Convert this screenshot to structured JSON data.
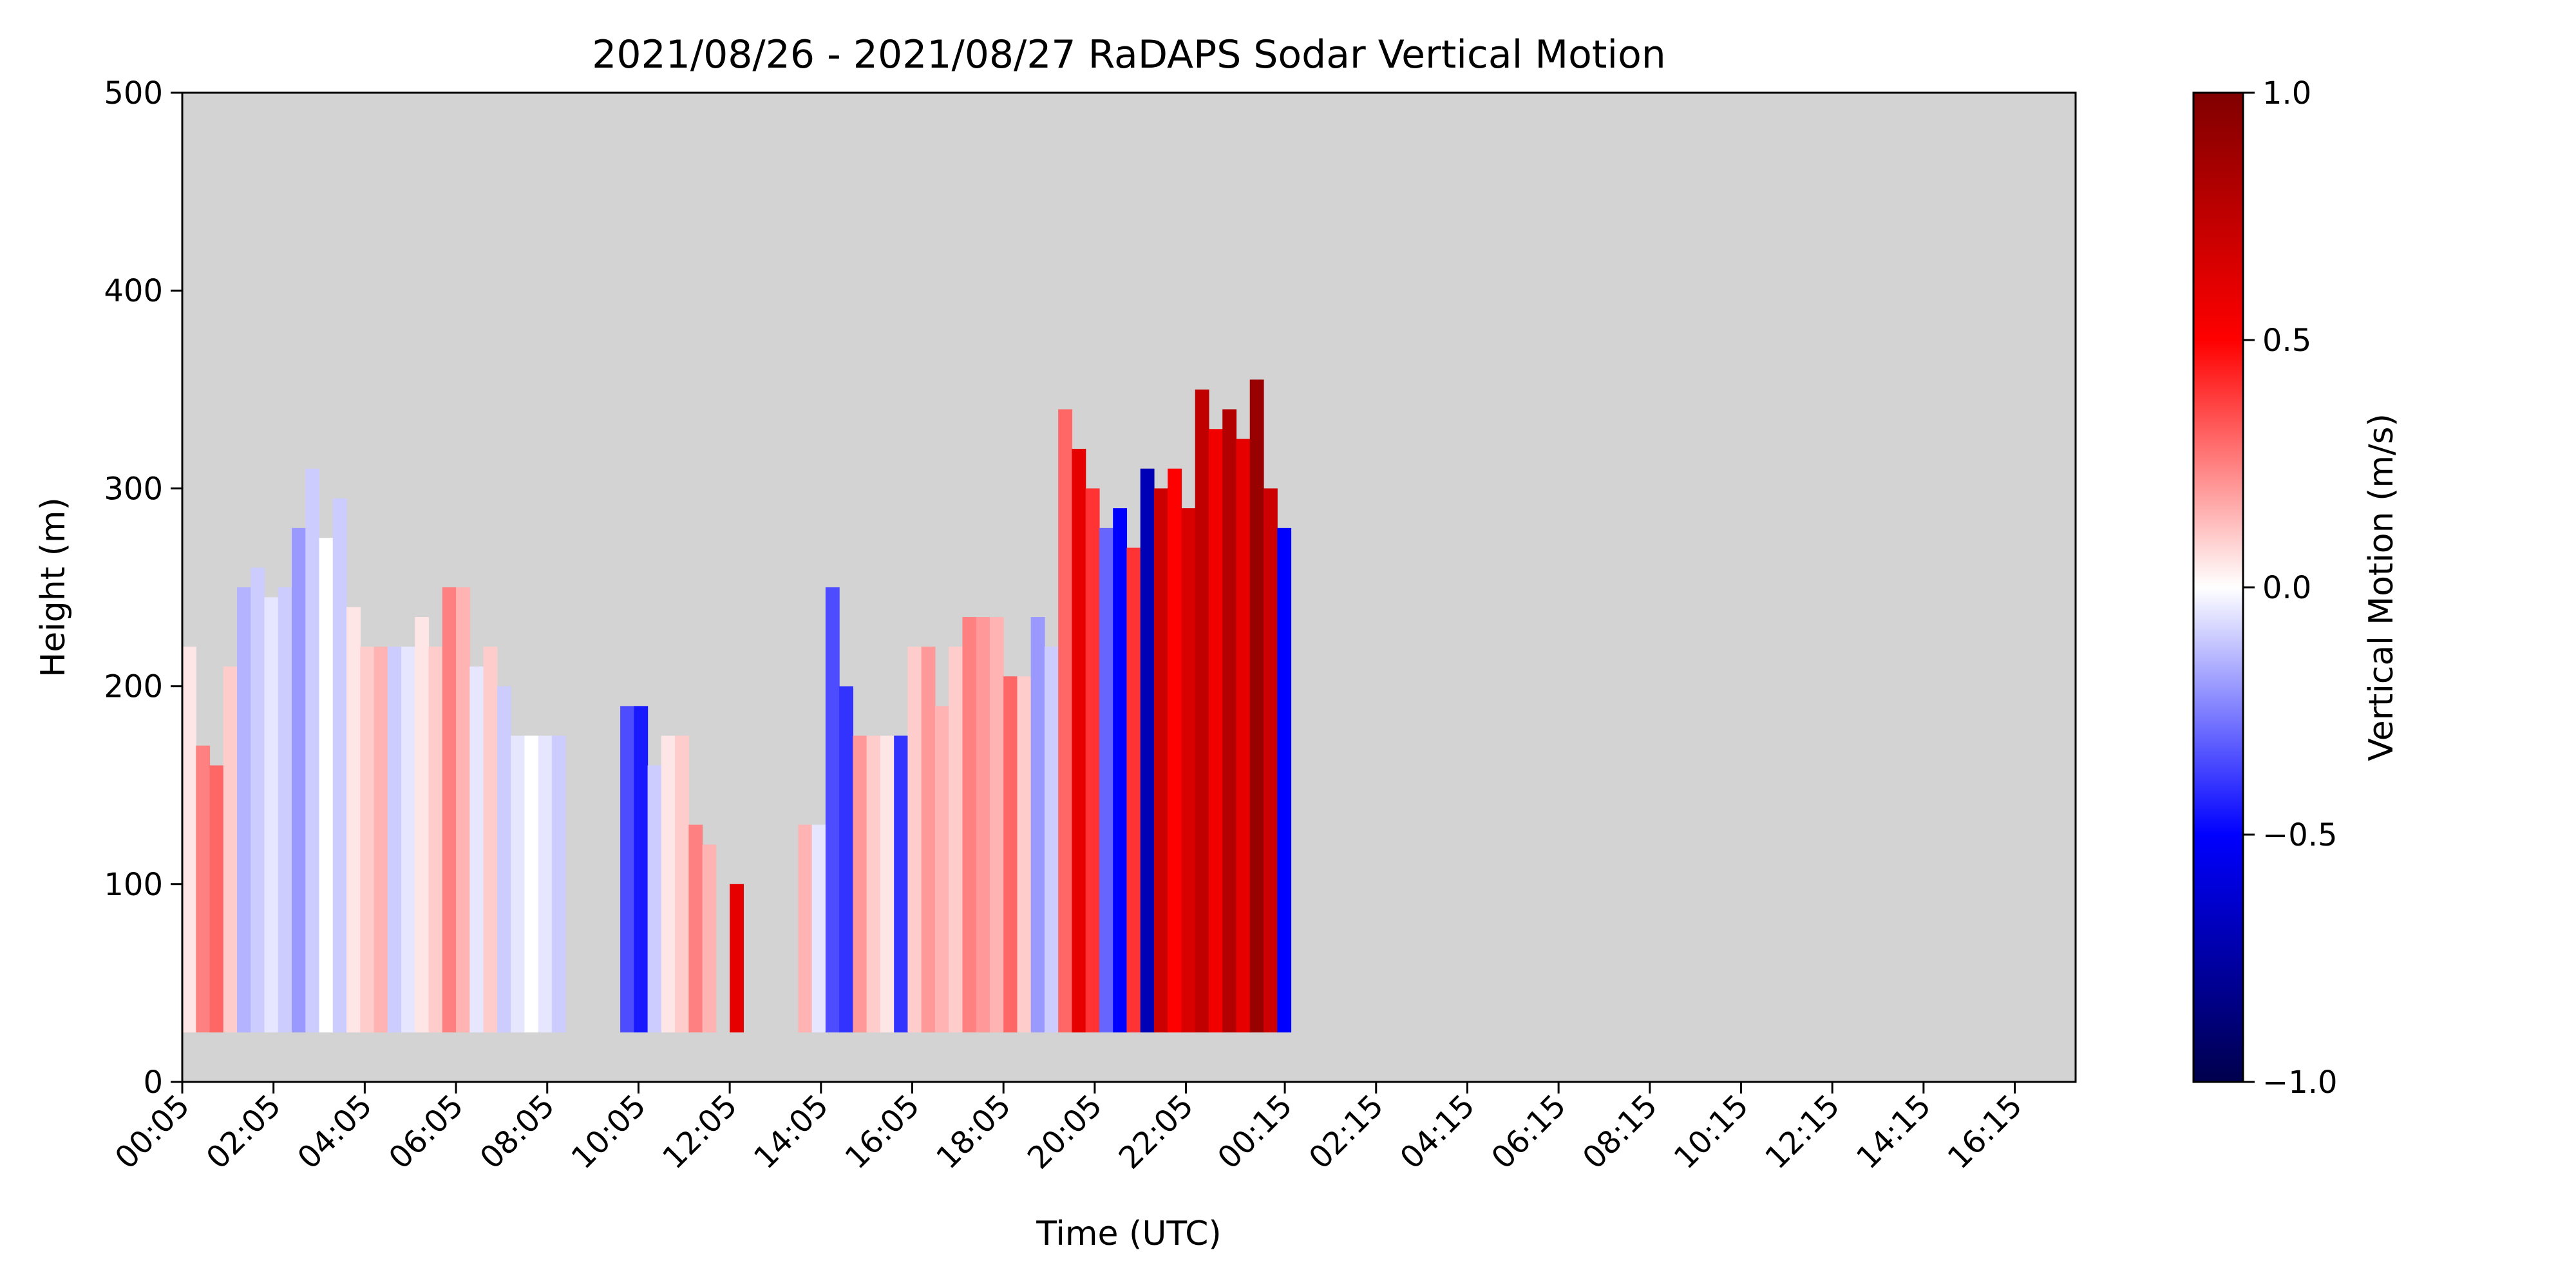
{
  "chart_data": {
    "type": "heatmap",
    "title": "2021/08/26 - 2021/08/27 RaDAPS Sodar Vertical Motion",
    "xlabel": "Time (UTC)",
    "ylabel": "Height (m)",
    "colorbar_label": "Vertical Motion (m/s)",
    "colormap": "seismic",
    "background_color": "#d3d3d3",
    "x_ticks": [
      "00:05",
      "02:05",
      "04:05",
      "06:05",
      "08:05",
      "10:05",
      "12:05",
      "14:05",
      "16:05",
      "18:05",
      "20:05",
      "22:05",
      "00:15",
      "02:15",
      "04:15",
      "06:15",
      "08:15",
      "10:15",
      "12:15",
      "14:15",
      "16:15"
    ],
    "x_tick_hours_from_start": [
      0,
      2,
      4,
      6,
      8,
      10,
      12,
      14,
      16,
      18,
      20,
      22,
      24.167,
      26.167,
      28.167,
      30.167,
      32.167,
      34.167,
      36.167,
      38.167,
      40.167
    ],
    "xlim_hours_from_start": [
      0,
      41.5
    ],
    "ylim": [
      0,
      500
    ],
    "y_ticks": [
      0,
      100,
      200,
      300,
      400,
      500
    ],
    "clim": [
      -1.0,
      1.0
    ],
    "colorbar_ticks": [
      "1.0",
      "0.5",
      "0.0",
      "−0.5",
      "−1.0"
    ],
    "colorbar_tick_values": [
      1.0,
      0.5,
      0.0,
      -0.5,
      -1.0
    ],
    "min_data_height": 25,
    "data_columns": [
      {
        "t": 0.0,
        "top": 220,
        "v": 0.05
      },
      {
        "t": 0.3,
        "top": 170,
        "v": 0.25
      },
      {
        "t": 0.6,
        "top": 160,
        "v": 0.3
      },
      {
        "t": 0.9,
        "top": 210,
        "v": 0.1
      },
      {
        "t": 1.2,
        "top": 250,
        "v": -0.15
      },
      {
        "t": 1.5,
        "top": 260,
        "v": -0.1
      },
      {
        "t": 1.8,
        "top": 245,
        "v": -0.05
      },
      {
        "t": 2.1,
        "top": 250,
        "v": -0.1
      },
      {
        "t": 2.4,
        "top": 280,
        "v": -0.2
      },
      {
        "t": 2.7,
        "top": 310,
        "v": -0.1
      },
      {
        "t": 3.0,
        "top": 275,
        "v": 0.0
      },
      {
        "t": 3.3,
        "top": 295,
        "v": -0.1
      },
      {
        "t": 3.6,
        "top": 240,
        "v": 0.05
      },
      {
        "t": 3.9,
        "top": 220,
        "v": 0.1
      },
      {
        "t": 4.2,
        "top": 220,
        "v": 0.15
      },
      {
        "t": 4.5,
        "top": 220,
        "v": -0.1
      },
      {
        "t": 4.8,
        "top": 220,
        "v": -0.05
      },
      {
        "t": 5.1,
        "top": 235,
        "v": 0.05
      },
      {
        "t": 5.4,
        "top": 220,
        "v": 0.1
      },
      {
        "t": 5.7,
        "top": 250,
        "v": 0.25
      },
      {
        "t": 6.0,
        "top": 250,
        "v": 0.15
      },
      {
        "t": 6.3,
        "top": 210,
        "v": -0.05
      },
      {
        "t": 6.6,
        "top": 220,
        "v": 0.1
      },
      {
        "t": 6.9,
        "top": 200,
        "v": -0.1
      },
      {
        "t": 7.2,
        "top": 175,
        "v": -0.05
      },
      {
        "t": 7.5,
        "top": 175,
        "v": 0.0
      },
      {
        "t": 7.8,
        "top": 175,
        "v": -0.05
      },
      {
        "t": 8.1,
        "top": 175,
        "v": -0.1
      },
      {
        "t": 9.6,
        "top": 190,
        "v": -0.35
      },
      {
        "t": 9.9,
        "top": 190,
        "v": -0.45
      },
      {
        "t": 10.2,
        "top": 160,
        "v": -0.1
      },
      {
        "t": 10.5,
        "top": 175,
        "v": 0.05
      },
      {
        "t": 10.8,
        "top": 175,
        "v": 0.1
      },
      {
        "t": 11.1,
        "top": 130,
        "v": 0.25
      },
      {
        "t": 11.4,
        "top": 120,
        "v": 0.15
      },
      {
        "t": 12.0,
        "top": 100,
        "v": 0.6
      },
      {
        "t": 13.5,
        "top": 130,
        "v": 0.15
      },
      {
        "t": 13.8,
        "top": 130,
        "v": -0.05
      },
      {
        "t": 14.1,
        "top": 250,
        "v": -0.35
      },
      {
        "t": 14.4,
        "top": 200,
        "v": -0.4
      },
      {
        "t": 14.7,
        "top": 175,
        "v": 0.2
      },
      {
        "t": 15.0,
        "top": 175,
        "v": 0.1
      },
      {
        "t": 15.3,
        "top": 175,
        "v": 0.05
      },
      {
        "t": 15.6,
        "top": 175,
        "v": -0.4
      },
      {
        "t": 15.9,
        "top": 220,
        "v": 0.1
      },
      {
        "t": 16.2,
        "top": 220,
        "v": 0.2
      },
      {
        "t": 16.5,
        "top": 190,
        "v": 0.15
      },
      {
        "t": 16.8,
        "top": 220,
        "v": 0.1
      },
      {
        "t": 17.1,
        "top": 235,
        "v": 0.25
      },
      {
        "t": 17.4,
        "top": 235,
        "v": 0.2
      },
      {
        "t": 17.7,
        "top": 235,
        "v": 0.15
      },
      {
        "t": 18.0,
        "top": 205,
        "v": 0.3
      },
      {
        "t": 18.3,
        "top": 205,
        "v": 0.1
      },
      {
        "t": 18.6,
        "top": 235,
        "v": -0.2
      },
      {
        "t": 18.9,
        "top": 220,
        "v": -0.1
      },
      {
        "t": 19.2,
        "top": 340,
        "v": 0.3
      },
      {
        "t": 19.5,
        "top": 320,
        "v": 0.6
      },
      {
        "t": 19.8,
        "top": 300,
        "v": 0.4
      },
      {
        "t": 20.1,
        "top": 280,
        "v": -0.3
      },
      {
        "t": 20.4,
        "top": 290,
        "v": -0.5
      },
      {
        "t": 20.7,
        "top": 270,
        "v": 0.4
      },
      {
        "t": 21.0,
        "top": 310,
        "v": -0.7
      },
      {
        "t": 21.3,
        "top": 300,
        "v": 0.7
      },
      {
        "t": 21.6,
        "top": 310,
        "v": 0.5
      },
      {
        "t": 21.9,
        "top": 290,
        "v": 0.65
      },
      {
        "t": 22.2,
        "top": 350,
        "v": 0.75
      },
      {
        "t": 22.5,
        "top": 330,
        "v": 0.55
      },
      {
        "t": 22.8,
        "top": 340,
        "v": 0.8
      },
      {
        "t": 23.1,
        "top": 325,
        "v": 0.6
      },
      {
        "t": 23.4,
        "top": 355,
        "v": 0.9
      },
      {
        "t": 23.7,
        "top": 300,
        "v": 0.7
      },
      {
        "t": 24.0,
        "top": 280,
        "v": -0.5
      }
    ],
    "data_columns_note": ""
  }
}
